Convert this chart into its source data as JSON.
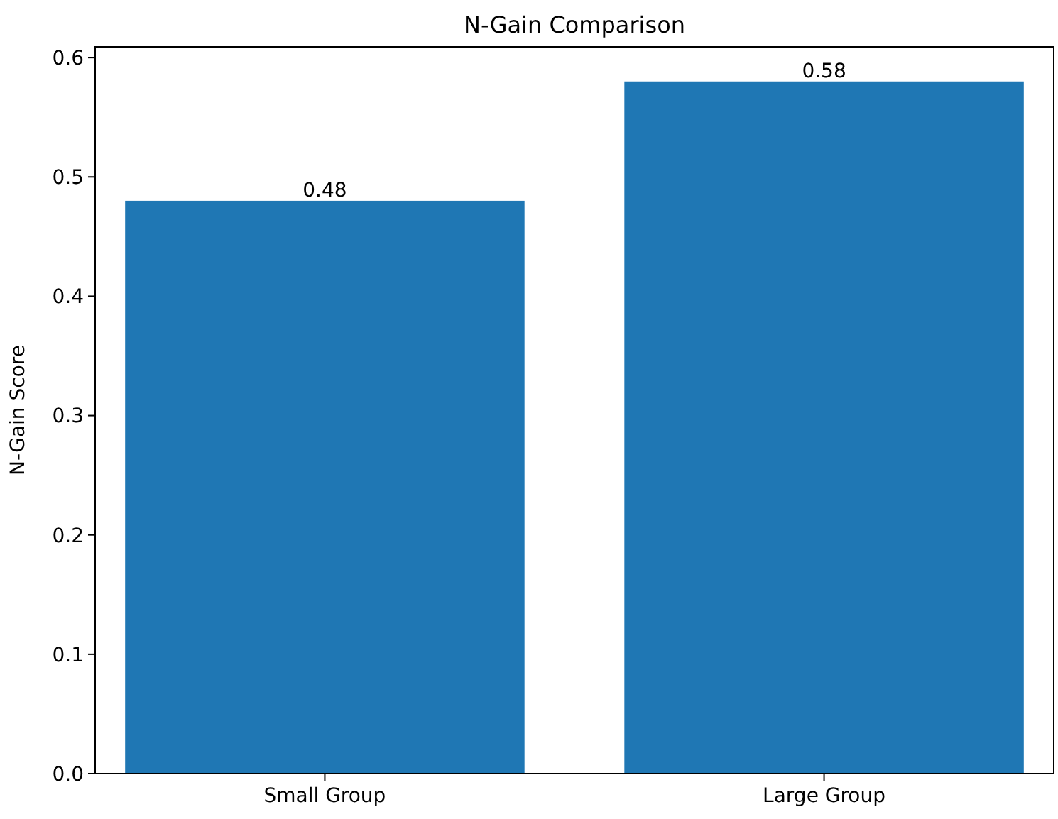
{
  "chart_data": {
    "type": "bar",
    "title": "N-Gain Comparison",
    "ylabel": "N-Gain Score",
    "categories": [
      "Small Group",
      "Large Group"
    ],
    "values": [
      0.48,
      0.58
    ],
    "color": "#1f77b4",
    "ylim": [
      0,
      0.609
    ],
    "yticks": [
      {
        "value": 0,
        "label": "0.0"
      },
      {
        "value": 0.1,
        "label": "0.1"
      },
      {
        "value": 0.2,
        "label": "0.2"
      },
      {
        "value": 0.3,
        "label": "0.3"
      },
      {
        "value": 0.4,
        "label": "0.4"
      },
      {
        "value": 0.5,
        "label": "0.5"
      },
      {
        "value": 0.6,
        "label": "0.6"
      }
    ],
    "data_labels": true,
    "grid": false
  }
}
